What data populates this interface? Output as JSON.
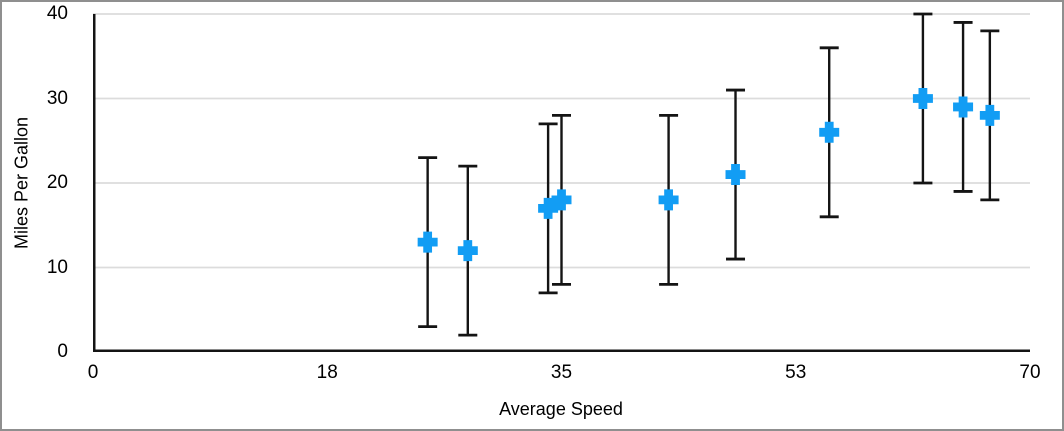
{
  "window": {
    "background": "#ffffff",
    "border_color": "#8f8f8f"
  },
  "chart_data": {
    "type": "scatter",
    "title": "",
    "xlabel": "Average Speed",
    "ylabel": "Miles Per Gallon",
    "xlim": [
      0,
      70
    ],
    "ylim": [
      0,
      40
    ],
    "x_ticks": [
      0,
      18,
      35,
      53,
      70
    ],
    "y_ticks": [
      0,
      10,
      20,
      30,
      40
    ],
    "grid": "horizontal",
    "legend": "none",
    "marker": {
      "shape": "plus",
      "color": "#129df4"
    },
    "error_bars": {
      "type": "fixed",
      "value": 10,
      "color": "#141414"
    },
    "colors": {
      "gridline": "#dcdcdc",
      "axis": "#141414",
      "text": "#000000"
    },
    "series": [
      {
        "name": "Miles Per Gallon",
        "points": [
          {
            "x": 25,
            "y": 13,
            "err": 10
          },
          {
            "x": 28,
            "y": 12,
            "err": 10
          },
          {
            "x": 34,
            "y": 17,
            "err": 10
          },
          {
            "x": 35,
            "y": 18,
            "err": 10
          },
          {
            "x": 43,
            "y": 18,
            "err": 10
          },
          {
            "x": 48,
            "y": 21,
            "err": 10
          },
          {
            "x": 55,
            "y": 26,
            "err": 10
          },
          {
            "x": 62,
            "y": 30,
            "err": 10
          },
          {
            "x": 65,
            "y": 29,
            "err": 10
          },
          {
            "x": 67,
            "y": 28,
            "err": 10
          }
        ]
      }
    ]
  }
}
